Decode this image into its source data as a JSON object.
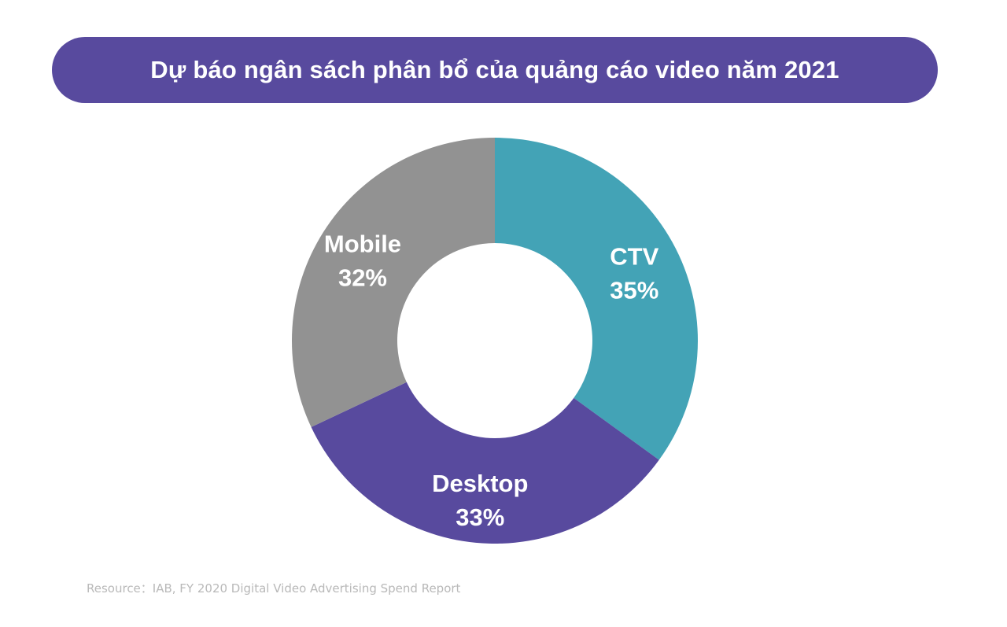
{
  "chart_data": {
    "type": "pie",
    "variant": "donut",
    "title": "Dự báo ngân sách phân bổ của quảng cáo video năm 2021",
    "slices": [
      {
        "label": "CTV",
        "value": 35,
        "value_label": "35%",
        "color": "#43a3b6"
      },
      {
        "label": "Desktop",
        "value": 33,
        "value_label": "33%",
        "color": "#584a9e"
      },
      {
        "label": "Mobile",
        "value": 32,
        "value_label": "32%",
        "color": "#929292"
      }
    ],
    "start_angle": "12 o'clock",
    "direction": "clockwise",
    "source": "Resource：IAB, FY 2020 Digital Video Advertising Spend Report"
  },
  "colors": {
    "title_background": "#584a9e",
    "title_text": "#ffffff",
    "label_text": "#ffffff",
    "source_text": "#b9b9b9"
  }
}
